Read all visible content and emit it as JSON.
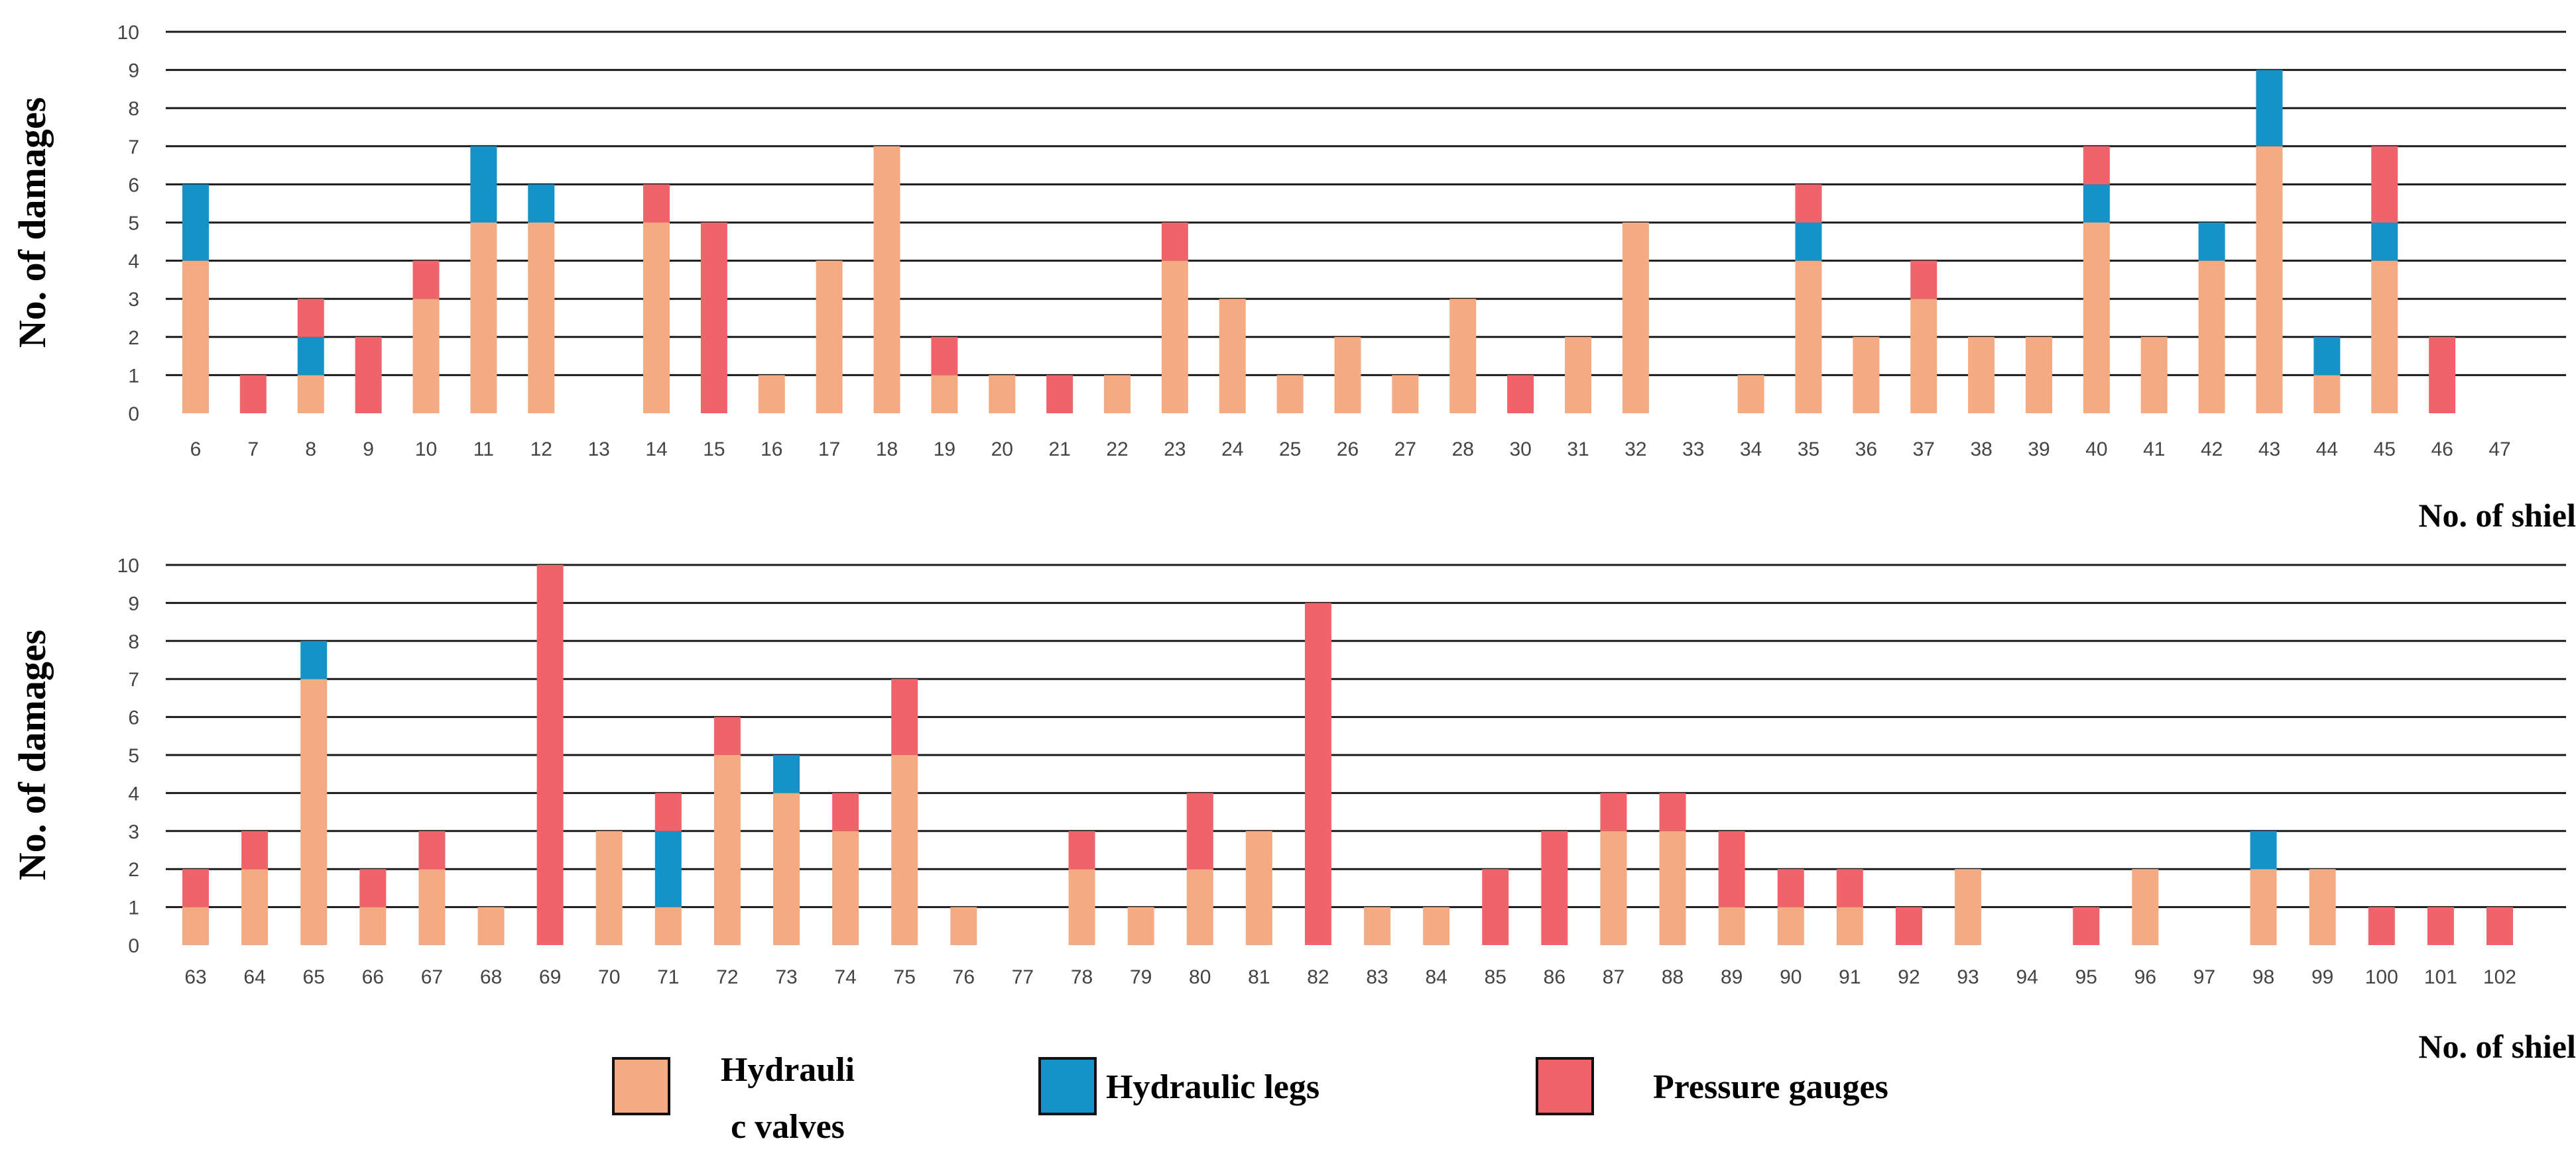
{
  "colors": {
    "hydraulic_valves": "#F4AA82",
    "hydraulic_legs": "#1592C8",
    "pressure_gauges": "#F0636B",
    "gridline": "#1a1a1a",
    "tick_label": "#444444",
    "axis_title": "#000000"
  },
  "legend": {
    "items": [
      {
        "key": "hydraulic_valves",
        "line1": "Hydrauli",
        "line2": "c valves"
      },
      {
        "key": "hydraulic_legs",
        "line1": "Hydraulic legs",
        "line2": ""
      },
      {
        "key": "pressure_gauges",
        "line1": "Pressure gauges",
        "line2": ""
      }
    ]
  },
  "chart_data": [
    {
      "type": "bar",
      "stacked": true,
      "ylabel": "No. of damages",
      "xlabel": "No. of shield",
      "ylim": [
        0,
        10
      ],
      "yticks": [
        0,
        1,
        2,
        3,
        4,
        5,
        6,
        7,
        8,
        9,
        10
      ],
      "grid": true,
      "categories": [
        "6",
        "7",
        "8",
        "9",
        "10",
        "11",
        "12",
        "13",
        "14",
        "15",
        "16",
        "17",
        "18",
        "19",
        "20",
        "21",
        "22",
        "23",
        "24",
        "25",
        "26",
        "27",
        "28",
        "30",
        "31",
        "32",
        "33",
        "34",
        "35",
        "36",
        "37",
        "38",
        "39",
        "40",
        "41",
        "42",
        "43",
        "44",
        "45",
        "46",
        "47"
      ],
      "series": [
        {
          "name": "Hydrauli c valves",
          "values": [
            4,
            0,
            1,
            0,
            3,
            5,
            5,
            0,
            5,
            0,
            1,
            4,
            7,
            1,
            1,
            0,
            1,
            4,
            3,
            1,
            2,
            1,
            3,
            0,
            2,
            5,
            0,
            1,
            4,
            2,
            3,
            2,
            2,
            5,
            2,
            4,
            7,
            1,
            4,
            0,
            0
          ]
        },
        {
          "name": "Hydraulic legs",
          "values": [
            2,
            0,
            1,
            0,
            0,
            2,
            1,
            0,
            0,
            0,
            0,
            0,
            0,
            0,
            0,
            0,
            0,
            0,
            0,
            0,
            0,
            0,
            0,
            0,
            0,
            0,
            0,
            0,
            1,
            0,
            0,
            0,
            0,
            1,
            0,
            1,
            2,
            1,
            1,
            0,
            0
          ]
        },
        {
          "name": "Pressure gauges",
          "values": [
            0,
            1,
            1,
            2,
            1,
            0,
            0,
            0,
            1,
            5,
            0,
            0,
            0,
            1,
            0,
            1,
            0,
            1,
            0,
            0,
            0,
            0,
            0,
            1,
            0,
            0,
            0,
            0,
            1,
            0,
            1,
            0,
            0,
            1,
            0,
            0,
            0,
            0,
            2,
            2,
            0
          ]
        }
      ]
    },
    {
      "type": "bar",
      "stacked": true,
      "ylabel": "No. of damages",
      "xlabel": "No. of shield",
      "ylim": [
        0,
        10
      ],
      "yticks": [
        0,
        1,
        2,
        3,
        4,
        5,
        6,
        7,
        8,
        9,
        10
      ],
      "grid": true,
      "categories": [
        "63",
        "64",
        "65",
        "66",
        "67",
        "68",
        "69",
        "70",
        "71",
        "72",
        "73",
        "74",
        "75",
        "76",
        "77",
        "78",
        "79",
        "80",
        "81",
        "82",
        "83",
        "84",
        "85",
        "86",
        "87",
        "88",
        "89",
        "90",
        "91",
        "92",
        "93",
        "94",
        "95",
        "96",
        "97",
        "98",
        "99",
        "100",
        "101",
        "102"
      ],
      "series": [
        {
          "name": "Hydrauli c valves",
          "values": [
            1,
            2,
            7,
            1,
            2,
            1,
            0,
            3,
            1,
            5,
            4,
            3,
            5,
            1,
            0,
            2,
            1,
            2,
            3,
            0,
            1,
            1,
            0,
            0,
            3,
            3,
            1,
            1,
            1,
            0,
            2,
            0,
            0,
            2,
            0,
            2,
            2,
            0,
            0,
            0
          ]
        },
        {
          "name": "Hydraulic legs",
          "values": [
            0,
            0,
            1,
            0,
            0,
            0,
            0,
            0,
            2,
            0,
            1,
            0,
            0,
            0,
            0,
            0,
            0,
            0,
            0,
            0,
            0,
            0,
            0,
            0,
            0,
            0,
            0,
            0,
            0,
            0,
            0,
            0,
            0,
            0,
            0,
            1,
            0,
            0,
            0,
            0
          ]
        },
        {
          "name": "Pressure gauges",
          "values": [
            1,
            1,
            0,
            1,
            1,
            0,
            10,
            0,
            1,
            1,
            0,
            1,
            2,
            0,
            0,
            1,
            0,
            2,
            0,
            9,
            0,
            0,
            2,
            3,
            1,
            1,
            2,
            1,
            1,
            1,
            0,
            0,
            1,
            0,
            0,
            0,
            0,
            1,
            1,
            1
          ]
        }
      ]
    }
  ]
}
